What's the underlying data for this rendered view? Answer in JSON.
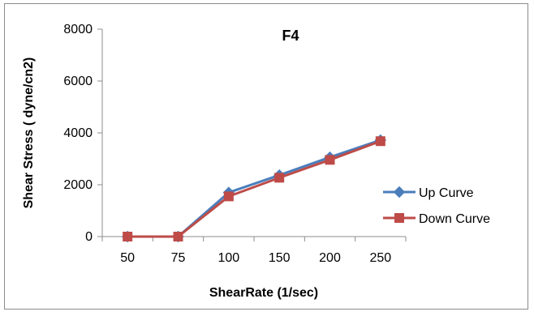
{
  "chart_data": {
    "type": "line",
    "title": "F4",
    "xlabel": "ShearRate (1/sec)",
    "ylabel": "Shear  Stress ( dyne/cn2)",
    "categories": [
      "50",
      "75",
      "100",
      "150",
      "200",
      "250"
    ],
    "ylim": [
      0,
      8000
    ],
    "yticks": [
      "0",
      "2000",
      "4000",
      "6000",
      "8000"
    ],
    "grid": false,
    "legend_position": "right",
    "series": [
      {
        "name": "Up Curve",
        "color": "#4a7ebb",
        "marker": "diamond",
        "values": [
          0,
          0,
          1700,
          2370,
          3060,
          3720
        ]
      },
      {
        "name": "Down Curve",
        "color": "#be4b48",
        "marker": "square",
        "values": [
          0,
          0,
          1550,
          2270,
          2960,
          3680
        ]
      }
    ]
  }
}
